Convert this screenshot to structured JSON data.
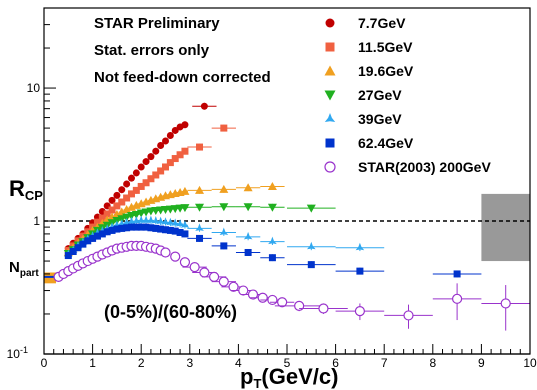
{
  "chart_data": {
    "type": "scatter",
    "xlabel_main": "p",
    "xlabel_sub": "T",
    "xlabel_unit": "(GeV/c)",
    "ylabel_main": "R",
    "ylabel_sub": "CP",
    "xlim": [
      0,
      10
    ],
    "ylim": [
      0.1,
      40
    ],
    "y_scale": "log",
    "x_ticks": [
      0,
      1,
      2,
      3,
      4,
      5,
      6,
      7,
      8,
      9,
      10
    ],
    "y_tick_labels": [
      {
        "value": 0.1,
        "base": "10",
        "exp": "-1"
      },
      {
        "value": 1,
        "text": "1"
      },
      {
        "value": 10,
        "text": "10"
      }
    ],
    "reference_line": 1,
    "npart_label_main": "N",
    "npart_label_sub": "part",
    "npart_value": 0.37,
    "annotations": [
      "STAR Preliminary",
      "Stat. errors only",
      "Not feed-down corrected",
      "(0-5%)/(60-80%)"
    ],
    "legend_position": "top-right",
    "series": [
      {
        "name": "7.7GeV",
        "color": "#c00000",
        "marker": "circle",
        "x": [
          0.5,
          0.6,
          0.7,
          0.8,
          0.9,
          1.0,
          1.1,
          1.2,
          1.3,
          1.4,
          1.5,
          1.6,
          1.7,
          1.8,
          1.9,
          2.0,
          2.1,
          2.2,
          2.3,
          2.4,
          2.5,
          2.6,
          2.7,
          2.8,
          2.9,
          3.3
        ],
        "y": [
          0.62,
          0.68,
          0.74,
          0.8,
          0.88,
          0.97,
          1.07,
          1.18,
          1.3,
          1.43,
          1.56,
          1.72,
          1.9,
          2.1,
          2.3,
          2.55,
          2.8,
          3.05,
          3.35,
          3.7,
          4.0,
          4.4,
          4.8,
          5.1,
          5.3,
          7.3
        ]
      },
      {
        "name": "11.5GeV",
        "color": "#f06040",
        "marker": "square",
        "x": [
          0.5,
          0.6,
          0.7,
          0.8,
          0.9,
          1.0,
          1.1,
          1.2,
          1.3,
          1.4,
          1.5,
          1.6,
          1.7,
          1.8,
          1.9,
          2.0,
          2.1,
          2.2,
          2.3,
          2.4,
          2.5,
          2.6,
          2.7,
          2.8,
          2.9,
          3.2,
          3.7
        ],
        "y": [
          0.6,
          0.65,
          0.71,
          0.77,
          0.83,
          0.9,
          0.98,
          1.05,
          1.13,
          1.21,
          1.3,
          1.39,
          1.49,
          1.6,
          1.7,
          1.82,
          1.94,
          2.08,
          2.22,
          2.38,
          2.55,
          2.75,
          2.95,
          3.15,
          3.35,
          3.6,
          5.0
        ]
      },
      {
        "name": "19.6GeV",
        "color": "#f0a020",
        "marker": "triangle-up",
        "x": [
          0.5,
          0.6,
          0.7,
          0.8,
          0.9,
          1.0,
          1.1,
          1.2,
          1.3,
          1.4,
          1.5,
          1.6,
          1.7,
          1.8,
          1.9,
          2.0,
          2.1,
          2.2,
          2.3,
          2.4,
          2.5,
          2.6,
          2.7,
          2.8,
          2.9,
          3.2,
          3.7,
          4.2,
          4.7
        ],
        "y": [
          0.58,
          0.63,
          0.68,
          0.73,
          0.79,
          0.85,
          0.9,
          0.96,
          1.02,
          1.07,
          1.12,
          1.17,
          1.22,
          1.27,
          1.31,
          1.35,
          1.39,
          1.43,
          1.47,
          1.51,
          1.55,
          1.58,
          1.61,
          1.64,
          1.67,
          1.7,
          1.73,
          1.78,
          1.82
        ]
      },
      {
        "name": "27GeV",
        "color": "#20b020",
        "marker": "triangle-down",
        "x": [
          0.5,
          0.6,
          0.7,
          0.8,
          0.9,
          1.0,
          1.1,
          1.2,
          1.3,
          1.4,
          1.5,
          1.6,
          1.7,
          1.8,
          1.9,
          2.0,
          2.1,
          2.2,
          2.3,
          2.4,
          2.5,
          2.6,
          2.7,
          2.8,
          2.9,
          3.2,
          3.7,
          4.2,
          4.7,
          5.5
        ],
        "y": [
          0.57,
          0.61,
          0.66,
          0.7,
          0.75,
          0.8,
          0.85,
          0.89,
          0.93,
          0.97,
          1.01,
          1.04,
          1.07,
          1.1,
          1.12,
          1.15,
          1.17,
          1.19,
          1.2,
          1.21,
          1.22,
          1.23,
          1.24,
          1.25,
          1.26,
          1.27,
          1.28,
          1.28,
          1.27,
          1.25
        ]
      },
      {
        "name": "39GeV",
        "color": "#30a8f0",
        "marker": "star",
        "x": [
          0.5,
          0.6,
          0.7,
          0.8,
          0.9,
          1.0,
          1.1,
          1.2,
          1.3,
          1.4,
          1.5,
          1.6,
          1.7,
          1.8,
          1.9,
          2.0,
          2.1,
          2.2,
          2.3,
          2.4,
          2.5,
          2.6,
          2.7,
          2.8,
          2.9,
          3.2,
          3.7,
          4.2,
          4.7,
          5.5,
          6.5
        ],
        "y": [
          0.56,
          0.6,
          0.65,
          0.69,
          0.73,
          0.77,
          0.81,
          0.84,
          0.87,
          0.9,
          0.93,
          0.95,
          0.97,
          0.99,
          1.0,
          1.01,
          1.01,
          1.01,
          1.0,
          0.99,
          0.98,
          0.97,
          0.96,
          0.95,
          0.93,
          0.88,
          0.82,
          0.76,
          0.7,
          0.64,
          0.63
        ]
      },
      {
        "name": "62.4GeV",
        "color": "#0033cc",
        "marker": "square",
        "x": [
          0.5,
          0.6,
          0.7,
          0.8,
          0.9,
          1.0,
          1.1,
          1.2,
          1.3,
          1.4,
          1.5,
          1.6,
          1.7,
          1.8,
          1.9,
          2.0,
          2.1,
          2.2,
          2.3,
          2.4,
          2.5,
          2.6,
          2.7,
          2.8,
          2.9,
          3.2,
          3.7,
          4.2,
          4.7,
          5.5,
          6.5,
          8.5
        ],
        "y": [
          0.55,
          0.59,
          0.63,
          0.67,
          0.71,
          0.74,
          0.77,
          0.8,
          0.83,
          0.85,
          0.87,
          0.88,
          0.89,
          0.9,
          0.9,
          0.9,
          0.9,
          0.89,
          0.88,
          0.87,
          0.86,
          0.85,
          0.84,
          0.82,
          0.8,
          0.74,
          0.65,
          0.58,
          0.53,
          0.47,
          0.42,
          0.4
        ]
      },
      {
        "name": "STAR(2003) 200GeV",
        "color": "#9933cc",
        "marker": "open-circle",
        "x": [
          0.3,
          0.4,
          0.5,
          0.6,
          0.7,
          0.8,
          0.9,
          1.0,
          1.1,
          1.2,
          1.3,
          1.4,
          1.5,
          1.6,
          1.7,
          1.8,
          1.9,
          2.0,
          2.1,
          2.2,
          2.3,
          2.4,
          2.5,
          2.7,
          2.9,
          3.1,
          3.3,
          3.5,
          3.7,
          3.9,
          4.1,
          4.3,
          4.5,
          4.7,
          4.9,
          5.25,
          5.75,
          6.5,
          7.5,
          8.5,
          9.5
        ],
        "y": [
          0.38,
          0.4,
          0.42,
          0.44,
          0.46,
          0.48,
          0.5,
          0.52,
          0.54,
          0.56,
          0.58,
          0.6,
          0.62,
          0.63,
          0.64,
          0.65,
          0.65,
          0.65,
          0.64,
          0.63,
          0.62,
          0.6,
          0.58,
          0.54,
          0.49,
          0.45,
          0.41,
          0.38,
          0.35,
          0.32,
          0.3,
          0.28,
          0.265,
          0.255,
          0.245,
          0.23,
          0.22,
          0.21,
          0.195,
          0.26,
          0.24
        ],
        "yerr": [
          0.01,
          0.01,
          0.01,
          0.01,
          0.01,
          0.01,
          0.01,
          0.01,
          0.01,
          0.01,
          0.01,
          0.01,
          0.01,
          0.01,
          0.01,
          0.01,
          0.01,
          0.01,
          0.01,
          0.01,
          0.01,
          0.01,
          0.01,
          0.01,
          0.01,
          0.01,
          0.01,
          0.01,
          0.01,
          0.01,
          0.01,
          0.01,
          0.01,
          0.01,
          0.01,
          0.02,
          0.02,
          0.03,
          0.04,
          0.08,
          0.09
        ]
      }
    ]
  }
}
